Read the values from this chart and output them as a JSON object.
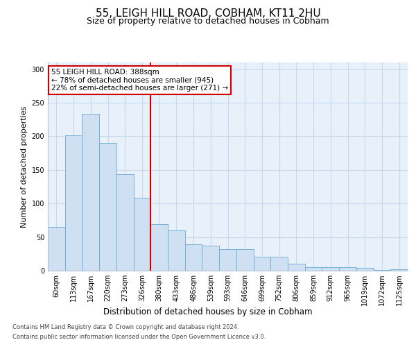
{
  "title": "55, LEIGH HILL ROAD, COBHAM, KT11 2HU",
  "subtitle": "Size of property relative to detached houses in Cobham",
  "xlabel": "Distribution of detached houses by size in Cobham",
  "ylabel": "Number of detached properties",
  "categories": [
    "60sqm",
    "113sqm",
    "167sqm",
    "220sqm",
    "273sqm",
    "326sqm",
    "380sqm",
    "433sqm",
    "486sqm",
    "539sqm",
    "593sqm",
    "646sqm",
    "699sqm",
    "752sqm",
    "806sqm",
    "859sqm",
    "912sqm",
    "965sqm",
    "1019sqm",
    "1072sqm",
    "1125sqm"
  ],
  "values": [
    65,
    202,
    234,
    190,
    144,
    108,
    69,
    60,
    39,
    37,
    32,
    32,
    21,
    21,
    10,
    5,
    5,
    5,
    4,
    1,
    2
  ],
  "bar_color": "#cfe0f2",
  "bar_edge_color": "#6aaad4",
  "vline_x": 6.0,
  "vline_color": "#cc0000",
  "annotation_text": "55 LEIGH HILL ROAD: 388sqm\n← 78% of detached houses are smaller (945)\n22% of semi-detached houses are larger (271) →",
  "annotation_box_color": "#ffffff",
  "annotation_box_edge": "#cc0000",
  "grid_color": "#c8d8ec",
  "background_color": "#e8f0fa",
  "ylim": [
    0,
    310
  ],
  "yticks": [
    0,
    50,
    100,
    150,
    200,
    250,
    300
  ],
  "footer_line1": "Contains HM Land Registry data © Crown copyright and database right 2024.",
  "footer_line2": "Contains public sector information licensed under the Open Government Licence v3.0.",
  "title_fontsize": 11,
  "subtitle_fontsize": 9,
  "tick_fontsize": 7,
  "ylabel_fontsize": 8,
  "xlabel_fontsize": 8.5
}
